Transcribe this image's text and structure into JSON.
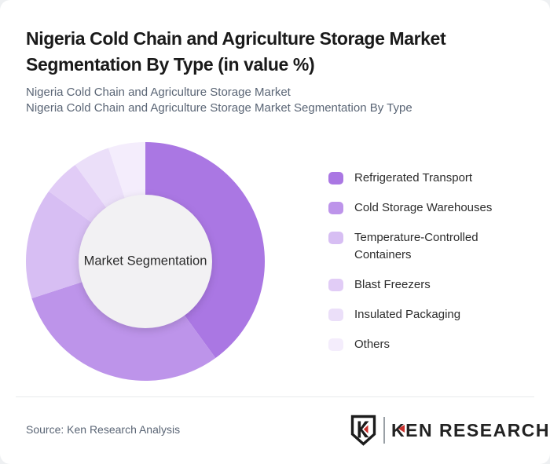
{
  "header": {
    "title_line1": "Nigeria Cold Chain and Agriculture Storage Market",
    "title_line2": "Segmentation By Type (in value %)",
    "subtitle_line1": "Nigeria Cold Chain and Agriculture Storage Market",
    "subtitle_line2": "Nigeria Cold Chain and Agriculture Storage Market Segmentation By Type"
  },
  "chart_data": {
    "type": "pie",
    "variant": "donut",
    "title": "Nigeria Cold Chain and Agriculture Storage Market Segmentation By Type (in value %)",
    "labels": [
      "Refrigerated Transport",
      "Cold Storage Warehouses",
      "Temperature-Controlled Containers",
      "Blast Freezers",
      "Insulated Packaging",
      "Others"
    ],
    "values": [
      40,
      30,
      15,
      5,
      5,
      5
    ],
    "unit": "%",
    "colors": [
      "#aa77e3",
      "#bd94ea",
      "#d7bef3",
      "#e1ccf6",
      "#ebdff9",
      "#f4edfc"
    ],
    "center_label": "Market Segmentation",
    "center_fill": "#f2f1f3",
    "start_angle_deg": 0,
    "direction": "clockwise",
    "legend_position": "right",
    "outer_radius": 152,
    "inner_radius": 85
  },
  "footer": {
    "source": "Source: Ken Research Analysis",
    "logo": {
      "badge_letter": "K",
      "brand": "KEN RESEARCH",
      "accent_color": "#c9302c",
      "ink_color": "#1c1c1c"
    }
  }
}
